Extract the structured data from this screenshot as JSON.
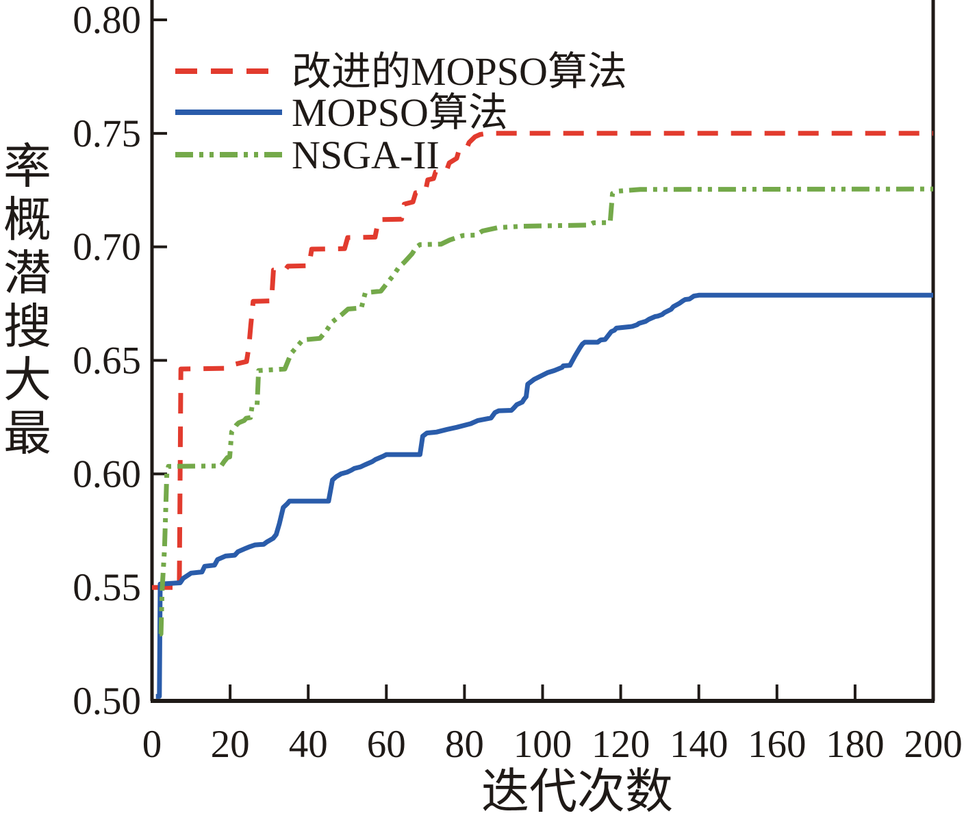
{
  "chart_data": {
    "type": "line",
    "title": "",
    "xlabel": "迭代次数",
    "ylabel": "最大搜潜概率",
    "xlim": [
      0,
      200
    ],
    "ylim": [
      0.5,
      0.8
    ],
    "x_ticks": [
      0,
      20,
      40,
      60,
      80,
      100,
      120,
      140,
      160,
      180,
      200
    ],
    "y_tick_labels": [
      "0.50",
      "0.55",
      "0.60",
      "0.65",
      "0.70",
      "0.75",
      "0.80"
    ],
    "y_tick_values": [
      0.5,
      0.55,
      0.6,
      0.65,
      0.7,
      0.75,
      0.8
    ],
    "grid": false,
    "legend_position": "top-left-inside",
    "axis_color": "#1f1a17",
    "series": [
      {
        "name": "改进的MOPSO算法",
        "color": "#e23b2e",
        "style": "dashed",
        "final_value": 0.75,
        "points": [
          [
            0,
            0.55
          ],
          [
            7,
            0.55
          ],
          [
            7.4,
            0.6462
          ],
          [
            19,
            0.6465
          ],
          [
            20,
            0.6478
          ],
          [
            24.2,
            0.6495
          ],
          [
            24.8,
            0.656
          ],
          [
            25.3,
            0.6655
          ],
          [
            25.9,
            0.676
          ],
          [
            30.6,
            0.6762
          ],
          [
            31.1,
            0.6898
          ],
          [
            34.2,
            0.69
          ],
          [
            34.8,
            0.6915
          ],
          [
            40.2,
            0.6917
          ],
          [
            40.9,
            0.699
          ],
          [
            49.3,
            0.6992
          ],
          [
            50.1,
            0.7041
          ],
          [
            57.1,
            0.7043
          ],
          [
            58,
            0.712
          ],
          [
            63.9,
            0.7122
          ],
          [
            64.6,
            0.7188
          ],
          [
            66.8,
            0.7198
          ],
          [
            67.5,
            0.7238
          ],
          [
            70,
            0.7245
          ],
          [
            70.6,
            0.7295
          ],
          [
            72.1,
            0.7301
          ],
          [
            72.6,
            0.733
          ],
          [
            75.4,
            0.7336
          ],
          [
            76.1,
            0.737
          ],
          [
            78,
            0.739
          ],
          [
            78.6,
            0.7425
          ],
          [
            80.5,
            0.7432
          ],
          [
            81.2,
            0.746
          ],
          [
            82.7,
            0.7485
          ],
          [
            84,
            0.7495
          ],
          [
            86,
            0.75
          ],
          [
            200,
            0.75
          ]
        ]
      },
      {
        "name": "MOPSO算法",
        "color": "#2a5caa",
        "style": "solid",
        "final_value": 0.679,
        "points": [
          [
            1,
            0.502
          ],
          [
            1.9,
            0.502
          ],
          [
            2.1,
            0.5515
          ],
          [
            7.2,
            0.552
          ],
          [
            8,
            0.554
          ],
          [
            10,
            0.5563
          ],
          [
            12.8,
            0.5568
          ],
          [
            13.5,
            0.5593
          ],
          [
            16,
            0.5598
          ],
          [
            16.8,
            0.5623
          ],
          [
            18.8,
            0.5638
          ],
          [
            21.2,
            0.5642
          ],
          [
            22,
            0.5657
          ],
          [
            24,
            0.5672
          ],
          [
            25,
            0.5679
          ],
          [
            26.4,
            0.5687
          ],
          [
            28.6,
            0.569
          ],
          [
            29.4,
            0.57
          ],
          [
            31,
            0.5716
          ],
          [
            31.8,
            0.5733
          ],
          [
            32.6,
            0.578
          ],
          [
            33.6,
            0.5852
          ],
          [
            34.6,
            0.5868
          ],
          [
            35.2,
            0.588
          ],
          [
            45.2,
            0.588
          ],
          [
            46.2,
            0.5973
          ],
          [
            47.2,
            0.5988
          ],
          [
            48.4,
            0.6
          ],
          [
            50,
            0.6008
          ],
          [
            51,
            0.6016
          ],
          [
            51.8,
            0.6024
          ],
          [
            53.4,
            0.6031
          ],
          [
            54.5,
            0.604
          ],
          [
            56.4,
            0.6054
          ],
          [
            57.2,
            0.6063
          ],
          [
            59.2,
            0.6078
          ],
          [
            60,
            0.6085
          ],
          [
            68.6,
            0.6085
          ],
          [
            69.3,
            0.6166
          ],
          [
            70.4,
            0.618
          ],
          [
            72.8,
            0.6184
          ],
          [
            75.6,
            0.6196
          ],
          [
            78,
            0.6205
          ],
          [
            81.6,
            0.6221
          ],
          [
            83.4,
            0.6235
          ],
          [
            86.8,
            0.6246
          ],
          [
            87.8,
            0.627
          ],
          [
            88.8,
            0.6278
          ],
          [
            92,
            0.628
          ],
          [
            92.6,
            0.629
          ],
          [
            93.4,
            0.6305
          ],
          [
            94.8,
            0.6316
          ],
          [
            95.3,
            0.633
          ],
          [
            95.8,
            0.634
          ],
          [
            96.2,
            0.6395
          ],
          [
            97.8,
            0.6416
          ],
          [
            101.3,
            0.6446
          ],
          [
            103,
            0.6455
          ],
          [
            105,
            0.6469
          ],
          [
            105.3,
            0.6476
          ],
          [
            107,
            0.6478
          ],
          [
            107.4,
            0.6491
          ],
          [
            108.3,
            0.652
          ],
          [
            109.6,
            0.6557
          ],
          [
            110.2,
            0.6572
          ],
          [
            110.8,
            0.658
          ],
          [
            114.1,
            0.658
          ],
          [
            114.9,
            0.659
          ],
          [
            116,
            0.6592
          ],
          [
            116.6,
            0.6605
          ],
          [
            117.6,
            0.6627
          ],
          [
            118.4,
            0.6633
          ],
          [
            118.9,
            0.6642
          ],
          [
            122.3,
            0.6648
          ],
          [
            123,
            0.665
          ],
          [
            124.2,
            0.6657
          ],
          [
            124.7,
            0.6663
          ],
          [
            126.4,
            0.6672
          ],
          [
            127.2,
            0.6681
          ],
          [
            128.8,
            0.6693
          ],
          [
            129.5,
            0.6695
          ],
          [
            130.6,
            0.6702
          ],
          [
            131.2,
            0.671
          ],
          [
            132.9,
            0.6725
          ],
          [
            133.5,
            0.6737
          ],
          [
            135.1,
            0.6752
          ],
          [
            135.9,
            0.6762
          ],
          [
            136.5,
            0.6768
          ],
          [
            137.6,
            0.677
          ],
          [
            138.2,
            0.6777
          ],
          [
            138.7,
            0.6783
          ],
          [
            140,
            0.6787
          ],
          [
            200,
            0.6787
          ]
        ]
      },
      {
        "name": "NSGA-II",
        "color": "#74a94a",
        "style": "dash-dot",
        "final_value": 0.7255,
        "points": [
          [
            2,
            0.5295
          ],
          [
            2.3,
            0.5295
          ],
          [
            2.6,
            0.549
          ],
          [
            3.2,
            0.567
          ],
          [
            3.8,
            0.6005
          ],
          [
            4.2,
            0.6033
          ],
          [
            17.7,
            0.6035
          ],
          [
            18.5,
            0.6055
          ],
          [
            19.3,
            0.6072
          ],
          [
            19.9,
            0.6075
          ],
          [
            20.4,
            0.6185
          ],
          [
            21.6,
            0.6215
          ],
          [
            22.2,
            0.6225
          ],
          [
            23.6,
            0.6235
          ],
          [
            24.1,
            0.6245
          ],
          [
            25.2,
            0.6248
          ],
          [
            25.6,
            0.6295
          ],
          [
            26.9,
            0.6302
          ],
          [
            27.3,
            0.6455
          ],
          [
            34,
            0.6462
          ],
          [
            35.6,
            0.653
          ],
          [
            38.6,
            0.659
          ],
          [
            43,
            0.6597
          ],
          [
            44.6,
            0.663
          ],
          [
            46.2,
            0.667
          ],
          [
            48.6,
            0.6702
          ],
          [
            50.2,
            0.6726
          ],
          [
            53.6,
            0.6731
          ],
          [
            54.6,
            0.6798
          ],
          [
            58.6,
            0.6805
          ],
          [
            60.2,
            0.684
          ],
          [
            61.6,
            0.687
          ],
          [
            63.2,
            0.691
          ],
          [
            64.6,
            0.6932
          ],
          [
            66.6,
            0.697
          ],
          [
            67.6,
            0.6998
          ],
          [
            68.6,
            0.701
          ],
          [
            74,
            0.7012
          ],
          [
            76.2,
            0.703
          ],
          [
            79.6,
            0.705
          ],
          [
            83,
            0.7052
          ],
          [
            84.6,
            0.707
          ],
          [
            88.6,
            0.7085
          ],
          [
            95,
            0.7091
          ],
          [
            112,
            0.7096
          ],
          [
            113,
            0.7106
          ],
          [
            117.3,
            0.7107
          ],
          [
            117.9,
            0.7235
          ],
          [
            119,
            0.7245
          ],
          [
            125,
            0.7253
          ],
          [
            200,
            0.7255
          ]
        ]
      }
    ]
  }
}
